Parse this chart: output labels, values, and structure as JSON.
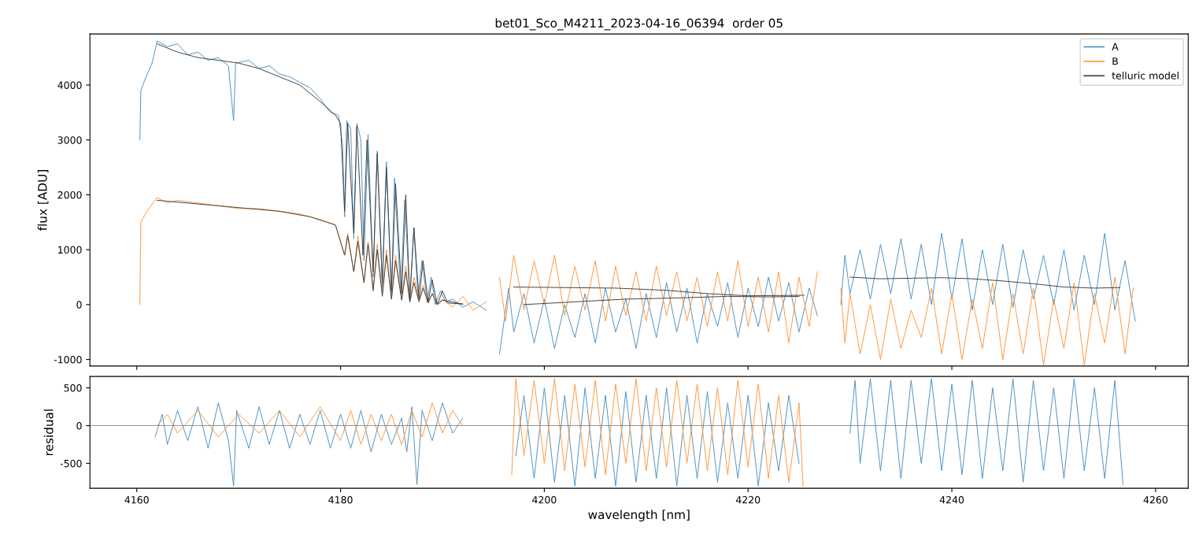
{
  "chart_data": [
    {
      "type": "line",
      "title": "bet01_Sco_M4211_2023-04-16_06394  order 05",
      "ylabel": "flux [ADU]",
      "xlim": [
        4155.4,
        4263.2
      ],
      "xticks": [
        4160,
        4180,
        4200,
        4220,
        4240,
        4260
      ],
      "ylim": [
        -1120,
        4930
      ],
      "yticks": [
        -1000,
        0,
        1000,
        2000,
        3000,
        4000
      ],
      "tick_labels": "y",
      "legend": "top right",
      "series": [
        {
          "name": "A",
          "color": "#4c92c3",
          "x": [
            4160.3,
            4160.4,
            4160.8,
            4161.5,
            4162,
            4163,
            4164,
            4165,
            4166,
            4167,
            4168,
            4169,
            4169.5,
            4169.7,
            4171,
            4172,
            4173,
            4174,
            4175,
            4176,
            4177,
            4178,
            4179,
            4179.8,
            4180.2,
            4180.4,
            4180.6,
            4181,
            4181.3,
            4181.6,
            4182,
            4182.3,
            4182.7,
            4183.2,
            4183.6,
            4184.1,
            4184.5,
            4185,
            4185.3,
            4185.9,
            4186.3,
            4186.8,
            4187.2,
            4187.6,
            4188,
            4188.5,
            4188.9,
            4189.3,
            4189.8,
            4190.3,
            4191,
            4192,
            4193,
            4194.3,
            4195,
            4195.6,
            4196.5,
            4197,
            4198,
            4199,
            4200,
            4201,
            4202,
            4203,
            4204,
            4205,
            4206,
            4207,
            4208,
            4209,
            4210,
            4211,
            4212,
            4213,
            4214,
            4215,
            4216,
            4217,
            4218,
            4219,
            4220,
            4221,
            4222,
            4223,
            4224,
            4225,
            4226,
            4226.8,
            4228,
            4229.1,
            4229.5,
            4230,
            4231,
            4232,
            4233,
            4234,
            4235,
            4236,
            4237,
            4238,
            4239,
            4240,
            4241,
            4242,
            4243,
            4244,
            4245,
            4246,
            4247,
            4248,
            4249,
            4250,
            4251,
            4252,
            4253,
            4254,
            4255,
            4256,
            4257,
            4258
          ],
          "values": [
            3000,
            3900,
            4100,
            4400,
            4800,
            4700,
            4750,
            4550,
            4600,
            4450,
            4500,
            4350,
            3350,
            4400,
            4450,
            4300,
            4350,
            4200,
            4150,
            4050,
            3950,
            3750,
            3500,
            3450,
            2900,
            1600,
            3350,
            3200,
            1200,
            3300,
            3000,
            800,
            3100,
            500,
            2800,
            300,
            2600,
            200,
            2300,
            200,
            1900,
            100,
            1400,
            150,
            800,
            50,
            500,
            0,
            250,
            50,
            100,
            -50,
            50,
            -100,
            null,
            -900,
            300,
            -500,
            200,
            -700,
            100,
            -800,
            0,
            -600,
            200,
            -700,
            300,
            -500,
            100,
            -800,
            200,
            -600,
            400,
            -500,
            300,
            -700,
            200,
            -400,
            400,
            -600,
            300,
            -400,
            500,
            -300,
            400,
            -500,
            300,
            -200,
            null,
            0,
            900,
            200,
            1000,
            100,
            1100,
            200,
            1200,
            100,
            1100,
            0,
            1300,
            100,
            1200,
            -100,
            1000,
            0,
            1100,
            -50,
            1000,
            100,
            900,
            0,
            1000,
            -100,
            900,
            0,
            1300,
            -100,
            800,
            -300
          ]
        },
        {
          "name": "B",
          "color": "#ff983e",
          "x": [
            4160.3,
            4160.4,
            4161,
            4162,
            4163,
            4164,
            4166,
            4168,
            4170,
            4172,
            4174,
            4176,
            4178,
            4179.5,
            4180.4,
            4180.7,
            4181.3,
            4181.7,
            4182.3,
            4182.7,
            4183.2,
            4183.6,
            4184.1,
            4184.5,
            4185,
            4185.4,
            4186,
            4186.4,
            4186.8,
            4187.2,
            4187.7,
            4188.1,
            4188.6,
            4189,
            4189.5,
            4190,
            4191,
            4192,
            4193,
            4194.3,
            4195,
            4195.6,
            4196.2,
            4197,
            4198,
            4199,
            4200,
            4201,
            4202,
            4203,
            4204,
            4205,
            4206,
            4207,
            4208,
            4209,
            4210,
            4211,
            4212,
            4213,
            4214,
            4215,
            4216,
            4217,
            4218,
            4219,
            4220,
            4221,
            4222,
            4223,
            4224,
            4225,
            4226,
            4226.8,
            4228,
            4229.1,
            4229.5,
            4230,
            4231,
            4232,
            4233,
            4234,
            4235,
            4236,
            4237,
            4238,
            4239,
            4240,
            4241,
            4242,
            4243,
            4244,
            4245,
            4246,
            4247,
            4248,
            4249,
            4250,
            4251,
            4252,
            4253,
            4254,
            4255,
            4256,
            4257,
            4257.8
          ],
          "values": [
            0,
            1500,
            1700,
            1950,
            1850,
            1900,
            1850,
            1800,
            1750,
            1750,
            1700,
            1650,
            1550,
            1450,
            900,
            1300,
            600,
            1250,
            400,
            1150,
            300,
            1100,
            200,
            1000,
            100,
            900,
            100,
            700,
            50,
            500,
            100,
            350,
            50,
            200,
            0,
            100,
            -50,
            150,
            -100,
            50,
            null,
            500,
            -300,
            900,
            -100,
            800,
            0,
            900,
            -200,
            700,
            -100,
            800,
            -300,
            700,
            -200,
            600,
            -300,
            700,
            -200,
            600,
            -300,
            500,
            -400,
            600,
            -300,
            800,
            -400,
            500,
            -500,
            600,
            -700,
            500,
            -400,
            600,
            null,
            300,
            -700,
            200,
            -900,
            0,
            -1000,
            100,
            -800,
            -100,
            -600,
            300,
            -900,
            200,
            -1000,
            100,
            -800,
            400,
            -1000,
            200,
            -900,
            300,
            -1100,
            100,
            -800,
            400,
            -1100,
            200,
            -700,
            500,
            -900,
            300
          ]
        },
        {
          "name": "telluric model",
          "color": "#404040",
          "x": [
            4162,
            4164,
            4166,
            4168,
            4170,
            4172,
            4174,
            4176,
            4178,
            4179.5,
            4180,
            4180.4,
            4180.7,
            4181.3,
            4181.6,
            4182.2,
            4182.6,
            4183.2,
            4183.6,
            4184.1,
            4184.5,
            4185,
            4185.4,
            4186,
            4186.4,
            4186.8,
            4187.2,
            4187.7,
            4188.1,
            4188.6,
            4189,
            4189.5,
            4190,
            4190.5,
            4192
          ],
          "values": [
            4750,
            4600,
            4500,
            4450,
            4400,
            4300,
            4150,
            4000,
            3700,
            3450,
            3300,
            1700,
            3300,
            1300,
            3250,
            900,
            3000,
            600,
            2750,
            400,
            2500,
            250,
            2200,
            200,
            2000,
            100,
            1400,
            100,
            800,
            50,
            450,
            0,
            250,
            30,
            10
          ]
        },
        {
          "color": "#404040",
          "x": [
            4162,
            4165,
            4168,
            4171,
            4174,
            4177,
            4179.5,
            4180.4,
            4180.7,
            4181.3,
            4181.7,
            4182.3,
            4182.7,
            4183.2,
            4183.6,
            4184.1,
            4184.5,
            4185,
            4185.4,
            4186,
            4186.4,
            4186.8,
            4187.2,
            4187.7,
            4188.1,
            4188.6,
            4189,
            4189.5,
            4190,
            4192
          ],
          "values": [
            1900,
            1850,
            1800,
            1750,
            1700,
            1600,
            1450,
            900,
            1250,
            600,
            1150,
            400,
            1100,
            250,
            1000,
            150,
            900,
            100,
            800,
            80,
            600,
            50,
            400,
            50,
            300,
            30,
            200,
            0,
            80,
            10
          ]
        },
        {
          "color": "#404040",
          "x": [
            4198,
            4203,
            4208,
            4213,
            4218,
            4222,
            4225
          ],
          "values": [
            0,
            50,
            100,
            120,
            150,
            140,
            150
          ]
        },
        {
          "color": "#404040",
          "x": [
            4197,
            4202,
            4207,
            4212,
            4216,
            4220,
            4225.5
          ],
          "values": [
            320,
            310,
            300,
            260,
            200,
            160,
            170
          ]
        },
        {
          "color": "#404040",
          "x": [
            4230,
            4233,
            4236,
            4239,
            4242,
            4245,
            4248,
            4251,
            4254,
            4256.5
          ],
          "values": [
            500,
            470,
            480,
            490,
            470,
            430,
            380,
            320,
            300,
            310
          ]
        }
      ]
    },
    {
      "type": "line",
      "xlabel": "wavelength [nm]",
      "ylabel": "residual",
      "xlim": [
        4155.4,
        4263.2
      ],
      "xticks": [
        4160,
        4180,
        4200,
        4220,
        4240,
        4260
      ],
      "ylim": [
        -830,
        650
      ],
      "yticks": [
        -500,
        0,
        500
      ],
      "ref_lines": [
        {
          "axis": "y",
          "value": 0,
          "color": "#808080"
        }
      ],
      "series": [
        {
          "color": "#4c92c3",
          "x": [
            4161.8,
            4162.5,
            4163,
            4164,
            4165,
            4166,
            4167,
            4168,
            4169,
            4169.5,
            4169.8,
            4171,
            4172,
            4173,
            4174,
            4175,
            4176,
            4177,
            4178,
            4179,
            4180,
            4181,
            4182,
            4183,
            4184,
            4185,
            4186,
            4186.5,
            4187,
            4187.5,
            4188,
            4189,
            4190,
            4191,
            4192,
            4195,
            4197.2,
            4198,
            4199,
            4200,
            4201,
            4202,
            4203,
            4204,
            4205,
            4206,
            4207,
            4208,
            4209,
            4210,
            4211,
            4212,
            4213,
            4214,
            4215,
            4216,
            4217,
            4218,
            4219,
            4220,
            4221,
            4222,
            4223,
            4224,
            4225,
            4228,
            4230,
            4230.5,
            4231,
            4232,
            4233,
            4234,
            4235,
            4236,
            4237,
            4238,
            4239,
            4240,
            4241,
            4242,
            4243,
            4244,
            4245,
            4246,
            4247,
            4248,
            4249,
            4250,
            4251,
            4252,
            4253,
            4254,
            4255,
            4256,
            4256.8
          ],
          "values": [
            -150,
            150,
            -250,
            200,
            -200,
            250,
            -300,
            300,
            -200,
            -800,
            200,
            -300,
            250,
            -250,
            200,
            -300,
            150,
            -250,
            200,
            -300,
            150,
            -300,
            200,
            -350,
            150,
            -250,
            100,
            -350,
            250,
            -780,
            200,
            -200,
            300,
            -100,
            100,
            null,
            -400,
            400,
            -700,
            500,
            -750,
            400,
            -800,
            500,
            -700,
            400,
            -800,
            450,
            -750,
            400,
            -700,
            500,
            -800,
            400,
            -700,
            450,
            -750,
            300,
            -700,
            400,
            -800,
            300,
            -600,
            400,
            -500,
            null,
            -100,
            600,
            -500,
            620,
            -600,
            600,
            -700,
            600,
            -500,
            620,
            -600,
            550,
            -650,
            600,
            -700,
            500,
            -600,
            620,
            -750,
            600,
            -600,
            500,
            -700,
            620,
            -600,
            500,
            -700,
            600,
            -780
          ]
        },
        {
          "color": "#ff983e",
          "x": [
            4162,
            4163,
            4164,
            4166,
            4168,
            4170,
            4172,
            4174,
            4176,
            4178,
            4180,
            4181,
            4182,
            4183,
            4184,
            4185,
            4186,
            4187,
            4188,
            4189,
            4190,
            4191,
            4192,
            4194,
            4196.8,
            4197.2,
            4198,
            4199,
            4200,
            4201,
            4202,
            4203,
            4204,
            4205,
            4206,
            4207,
            4208,
            4209,
            4210,
            4211,
            4212,
            4213,
            4214,
            4215,
            4216,
            4217,
            4218,
            4219,
            4220,
            4221,
            4222,
            4223,
            4224,
            4225,
            4225.4
          ],
          "values": [
            0,
            150,
            -100,
            200,
            -150,
            150,
            -100,
            200,
            -150,
            250,
            -200,
            200,
            -250,
            150,
            -200,
            150,
            -250,
            200,
            -150,
            300,
            -100,
            200,
            0,
            null,
            -650,
            620,
            -400,
            600,
            -500,
            620,
            -600,
            550,
            -550,
            600,
            -650,
            550,
            -500,
            620,
            -600,
            500,
            -550,
            600,
            -500,
            550,
            -600,
            500,
            -650,
            600,
            -550,
            550,
            -700,
            400,
            -750,
            300,
            -800
          ]
        }
      ]
    }
  ]
}
